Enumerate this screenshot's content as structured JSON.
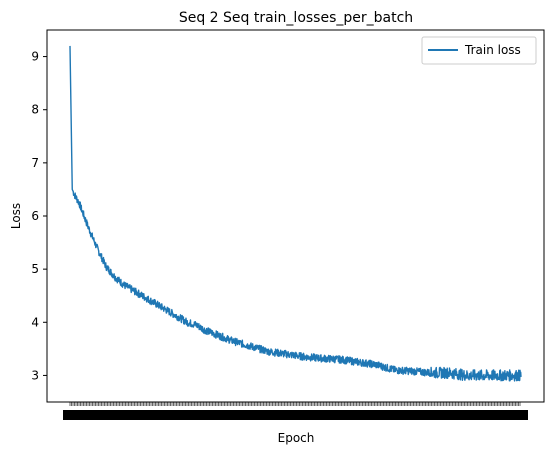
{
  "chart_data": {
    "type": "line",
    "title": "Seq 2 Seq train_losses_per_batch",
    "xlabel": "Epoch",
    "ylabel": "Loss",
    "ylim": [
      2.5,
      9.5
    ],
    "yticks": [
      3,
      4,
      5,
      6,
      7,
      8,
      9
    ],
    "grid": false,
    "legend_position": "top-right",
    "x_tick_labels_overlapping": true,
    "series": [
      {
        "name": "Train loss",
        "color": "#1f77b4",
        "noise": 0.07,
        "x": [
          0,
          0.5,
          1,
          2,
          4,
          6,
          8,
          10,
          12,
          14,
          16,
          18,
          20,
          22,
          24,
          26,
          28,
          30,
          33,
          36,
          40,
          44,
          48,
          52,
          56,
          60,
          64,
          68,
          72,
          76,
          80,
          84,
          88,
          92,
          96,
          100
        ],
        "values": [
          9.2,
          6.5,
          6.4,
          6.25,
          5.8,
          5.4,
          5.05,
          4.85,
          4.7,
          4.6,
          4.5,
          4.4,
          4.3,
          4.2,
          4.1,
          4.0,
          3.95,
          3.85,
          3.75,
          3.65,
          3.55,
          3.45,
          3.4,
          3.35,
          3.32,
          3.3,
          3.25,
          3.2,
          3.1,
          3.08,
          3.05,
          3.05,
          3.0,
          3.0,
          3.0,
          3.0
        ]
      }
    ]
  }
}
